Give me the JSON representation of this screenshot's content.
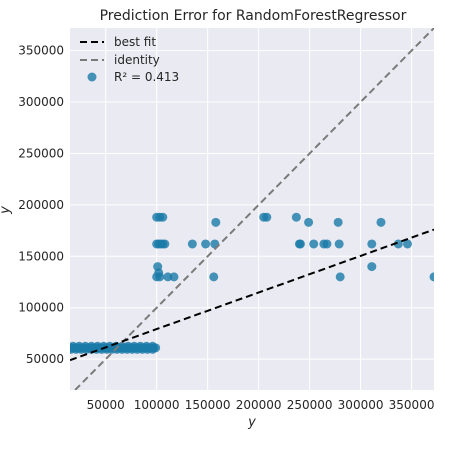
{
  "chart_data": {
    "type": "scatter",
    "title": "Prediction Error for RandomForestRegressor",
    "xlabel": "y",
    "ylabel": "y",
    "xlim": [
      15000,
      372000
    ],
    "ylim": [
      20000,
      372000
    ],
    "xticks": [
      50000,
      100000,
      150000,
      200000,
      250000,
      300000,
      350000
    ],
    "yticks": [
      50000,
      100000,
      150000,
      200000,
      250000,
      300000,
      350000
    ],
    "grid": true,
    "legend_position": "top-left",
    "colors": {
      "plot_bg": "#eaeaf2",
      "grid": "#ffffff",
      "points": "#1a7aa8",
      "best_fit": "#000000",
      "identity": "#7a7a7a"
    },
    "best_fit": {
      "x": [
        15000,
        372000
      ],
      "y": [
        49000,
        176000
      ]
    },
    "identity": {
      "x": [
        20000,
        372000
      ],
      "y": [
        20000,
        372000
      ]
    },
    "legend": {
      "best_fit_label": "best fit",
      "identity_label": "identity",
      "score_label": "R² = 0.413"
    },
    "points": [
      [
        16000,
        61000
      ],
      [
        19000,
        61000
      ],
      [
        22000,
        61000
      ],
      [
        25000,
        61000
      ],
      [
        28000,
        61000
      ],
      [
        31000,
        61000
      ],
      [
        34000,
        61000
      ],
      [
        37000,
        61000
      ],
      [
        40000,
        61000
      ],
      [
        43000,
        61000
      ],
      [
        46000,
        61000
      ],
      [
        49000,
        61000
      ],
      [
        52000,
        61000
      ],
      [
        55000,
        61000
      ],
      [
        58000,
        61000
      ],
      [
        61000,
        61000
      ],
      [
        64000,
        61000
      ],
      [
        67000,
        61000
      ],
      [
        70000,
        61000
      ],
      [
        73000,
        61000
      ],
      [
        76000,
        61000
      ],
      [
        79000,
        61000
      ],
      [
        82000,
        61000
      ],
      [
        85000,
        61000
      ],
      [
        88000,
        61000
      ],
      [
        91000,
        61000
      ],
      [
        94000,
        61000
      ],
      [
        97000,
        61000
      ],
      [
        99000,
        61000
      ],
      [
        16000,
        59500
      ],
      [
        21000,
        59500
      ],
      [
        26000,
        59500
      ],
      [
        31000,
        59500
      ],
      [
        36000,
        59500
      ],
      [
        41000,
        59500
      ],
      [
        46000,
        59500
      ],
      [
        51000,
        59500
      ],
      [
        56000,
        59500
      ],
      [
        61000,
        59500
      ],
      [
        66000,
        59500
      ],
      [
        71000,
        59500
      ],
      [
        76000,
        59500
      ],
      [
        81000,
        59500
      ],
      [
        86000,
        59500
      ],
      [
        91000,
        59500
      ],
      [
        96000,
        59500
      ],
      [
        18000,
        62500
      ],
      [
        24000,
        62500
      ],
      [
        30000,
        62500
      ],
      [
        36000,
        62500
      ],
      [
        42000,
        62500
      ],
      [
        48000,
        62500
      ],
      [
        54000,
        62500
      ],
      [
        60000,
        62500
      ],
      [
        66000,
        62500
      ],
      [
        72000,
        62500
      ],
      [
        78000,
        62500
      ],
      [
        84000,
        62500
      ],
      [
        90000,
        62500
      ],
      [
        96000,
        62500
      ],
      [
        100000,
        188000
      ],
      [
        103000,
        188000
      ],
      [
        106000,
        188000
      ],
      [
        100000,
        162000
      ],
      [
        102000,
        162000
      ],
      [
        104000,
        162000
      ],
      [
        106000,
        162000
      ],
      [
        108000,
        162000
      ],
      [
        101000,
        140000
      ],
      [
        102000,
        134000
      ],
      [
        100000,
        130000
      ],
      [
        103000,
        130000
      ],
      [
        111000,
        130000
      ],
      [
        117000,
        130000
      ],
      [
        135000,
        162000
      ],
      [
        148000,
        162000
      ],
      [
        157000,
        162000
      ],
      [
        156000,
        130000
      ],
      [
        158000,
        183000
      ],
      [
        205000,
        188000
      ],
      [
        208000,
        188000
      ],
      [
        237000,
        188000
      ],
      [
        240000,
        162000
      ],
      [
        241000,
        162000
      ],
      [
        249000,
        183000
      ],
      [
        254000,
        162000
      ],
      [
        264000,
        162000
      ],
      [
        267000,
        162000
      ],
      [
        278000,
        183000
      ],
      [
        279000,
        162000
      ],
      [
        280000,
        130000
      ],
      [
        311000,
        162000
      ],
      [
        311000,
        140000
      ],
      [
        320000,
        183000
      ],
      [
        337000,
        162000
      ],
      [
        346000,
        162000
      ],
      [
        372000,
        130000
      ]
    ]
  }
}
